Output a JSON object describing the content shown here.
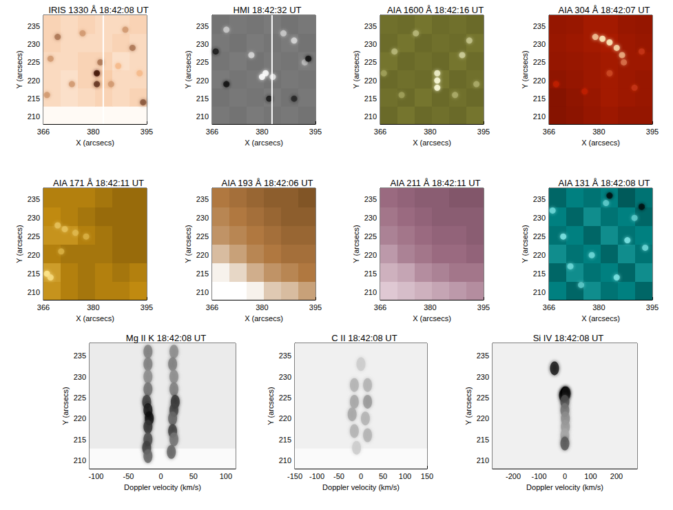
{
  "chart_data": [
    {
      "type": "heatmap",
      "title": "IRIS 1330 Å 18:42:08 UT",
      "x_label": "X (arcsecs)",
      "y_label": "Y (arcsecs)",
      "xlim": [
        366,
        395
      ],
      "xticks": [
        366,
        380,
        395
      ],
      "ylim": [
        208,
        238
      ],
      "yticks": [
        210,
        215,
        220,
        225,
        230,
        235
      ],
      "zlim": [
        0,
        1
      ],
      "colors": [
        "#fffaf5",
        "#f5b98a",
        "#3a0d00"
      ],
      "cells": [
        [
          0,
          0,
          0,
          0,
          0,
          0
        ],
        [
          0.25,
          0.2,
          0.25,
          0.3,
          0.25,
          0.3
        ],
        [
          0.25,
          0.2,
          0.3,
          0.35,
          0.25,
          0.25
        ],
        [
          0.25,
          0.25,
          0.3,
          0.3,
          0.2,
          0.25
        ],
        [
          0.3,
          0.25,
          0.25,
          0.25,
          0.3,
          0.25
        ],
        [
          0.3,
          0.25,
          0.3,
          0.25,
          0.25,
          0.3
        ]
      ],
      "spots": [
        [
          381,
          222,
          1
        ],
        [
          381,
          219,
          0.9
        ],
        [
          382,
          225,
          0.7
        ],
        [
          370,
          232,
          0.7
        ],
        [
          368,
          226,
          0.6
        ],
        [
          374,
          219,
          0.6
        ],
        [
          391,
          229,
          0.7
        ],
        [
          394,
          214,
          0.8
        ],
        [
          387,
          224,
          0.5
        ],
        [
          377,
          233,
          0.6
        ],
        [
          389,
          234,
          0.6
        ],
        [
          367,
          216,
          0.6
        ],
        [
          385,
          219,
          0.6
        ],
        [
          393,
          222,
          0.5
        ]
      ],
      "slit_x": 382.8
    },
    {
      "type": "heatmap",
      "title": "HMI 18:42:32 UT",
      "x_label": "X (arcsecs)",
      "y_label": "Y (arcsecs)",
      "xlim": [
        366,
        395
      ],
      "xticks": [
        366,
        380,
        395
      ],
      "ylim": [
        208,
        238
      ],
      "yticks": [
        210,
        215,
        220,
        225,
        230,
        235
      ],
      "zlim": [
        0,
        1
      ],
      "colors": [
        "#000000",
        "#ffffff"
      ],
      "cells": [
        [
          0.47,
          0.45,
          0.48,
          0.46,
          0.47,
          0.45
        ],
        [
          0.45,
          0.47,
          0.46,
          0.48,
          0.45,
          0.47
        ],
        [
          0.48,
          0.46,
          0.47,
          0.45,
          0.47,
          0.46
        ],
        [
          0.46,
          0.48,
          0.45,
          0.47,
          0.46,
          0.48
        ],
        [
          0.47,
          0.45,
          0.48,
          0.46,
          0.48,
          0.45
        ],
        [
          0.45,
          0.47,
          0.46,
          0.48,
          0.45,
          0.47
        ]
      ],
      "spots": [
        [
          381,
          222,
          1
        ],
        [
          380,
          221,
          1
        ],
        [
          383,
          221,
          0.9
        ],
        [
          377,
          227,
          0.85
        ],
        [
          389,
          231,
          0.85
        ],
        [
          392,
          225,
          0.75
        ],
        [
          386,
          233,
          0.8
        ],
        [
          370,
          234,
          0.8
        ],
        [
          370,
          219,
          0.05
        ],
        [
          367,
          228,
          0.1
        ],
        [
          382,
          215,
          0.1
        ],
        [
          393,
          226,
          0.05
        ],
        [
          389,
          215,
          0.15
        ]
      ],
      "slit_x": 382.8
    },
    {
      "type": "heatmap",
      "title": "AIA 1600 Å 18:42:16 UT",
      "x_label": "X (arcsecs)",
      "y_label": "Y (arcsecs)",
      "xlim": [
        366,
        395
      ],
      "xticks": [
        366,
        380,
        395
      ],
      "ylim": [
        208,
        238
      ],
      "yticks": [
        210,
        215,
        220,
        225,
        230,
        235
      ],
      "zlim": [
        0,
        1
      ],
      "colors": [
        "#1f1f00",
        "#8a8a3a",
        "#ffffe0"
      ],
      "cells": [
        [
          0.35,
          0.4,
          0.35,
          0.38,
          0.35,
          0.4
        ],
        [
          0.38,
          0.35,
          0.4,
          0.35,
          0.38,
          0.35
        ],
        [
          0.35,
          0.38,
          0.36,
          0.4,
          0.35,
          0.38
        ],
        [
          0.4,
          0.35,
          0.38,
          0.35,
          0.4,
          0.36
        ],
        [
          0.36,
          0.4,
          0.35,
          0.38,
          0.36,
          0.4
        ],
        [
          0.38,
          0.36,
          0.4,
          0.36,
          0.38,
          0.35
        ]
      ],
      "spots": [
        [
          382,
          220,
          1
        ],
        [
          382,
          218,
          1
        ],
        [
          382,
          222,
          0.95
        ],
        [
          389,
          227,
          0.8
        ],
        [
          391,
          231,
          0.75
        ],
        [
          370,
          228,
          0.7
        ],
        [
          376,
          233,
          0.7
        ],
        [
          387,
          216,
          0.65
        ],
        [
          372,
          216,
          0.6
        ],
        [
          393,
          219,
          0.65
        ],
        [
          367,
          222,
          0.6
        ]
      ]
    },
    {
      "type": "heatmap",
      "title": "AIA 304 Å 18:42:07 UT",
      "x_label": "X (arcsecs)",
      "y_label": "Y (arcsecs)",
      "xlim": [
        366,
        395
      ],
      "xticks": [
        366,
        380,
        395
      ],
      "ylim": [
        208,
        238
      ],
      "yticks": [
        210,
        215,
        220,
        225,
        230,
        235
      ],
      "zlim": [
        0,
        1
      ],
      "colors": [
        "#300000",
        "#c02000",
        "#fff0c0"
      ],
      "cells": [
        [
          0.3,
          0.32,
          0.35,
          0.38,
          0.35,
          0.35
        ],
        [
          0.3,
          0.33,
          0.36,
          0.4,
          0.38,
          0.36
        ],
        [
          0.33,
          0.35,
          0.38,
          0.4,
          0.38,
          0.36
        ],
        [
          0.35,
          0.36,
          0.38,
          0.4,
          0.38,
          0.38
        ],
        [
          0.36,
          0.38,
          0.4,
          0.42,
          0.38,
          0.36
        ],
        [
          0.35,
          0.36,
          0.4,
          0.4,
          0.36,
          0.35
        ]
      ],
      "spots": [
        [
          379,
          232,
          0.9
        ],
        [
          381,
          231.5,
          1
        ],
        [
          383,
          230.5,
          1
        ],
        [
          385,
          229,
          0.95
        ],
        [
          386.5,
          227,
          0.85
        ],
        [
          387,
          225,
          0.7
        ],
        [
          383,
          222,
          0.6
        ],
        [
          390,
          218,
          0.55
        ],
        [
          376,
          217,
          0.5
        ],
        [
          368,
          219,
          0.5
        ],
        [
          392,
          228,
          0.55
        ]
      ]
    },
    {
      "type": "heatmap",
      "title": "AIA 171 Å 18:42:11 UT",
      "x_label": "X (arcsecs)",
      "y_label": "Y (arcsecs)",
      "xlim": [
        366,
        395
      ],
      "xticks": [
        366,
        380,
        395
      ],
      "ylim": [
        208,
        238
      ],
      "yticks": [
        210,
        215,
        220,
        225,
        230,
        235
      ],
      "zlim": [
        0,
        1
      ],
      "colors": [
        "#3a2400",
        "#c08a10",
        "#ffe890"
      ],
      "cells": [
        [
          0.55,
          0.45,
          0.4,
          0.45,
          0.45,
          0.5
        ],
        [
          0.6,
          0.45,
          0.4,
          0.45,
          0.4,
          0.45
        ],
        [
          0.45,
          0.4,
          0.4,
          0.4,
          0.35,
          0.35
        ],
        [
          0.55,
          0.55,
          0.45,
          0.4,
          0.35,
          0.35
        ],
        [
          0.5,
          0.45,
          0.4,
          0.35,
          0.35,
          0.35
        ],
        [
          0.45,
          0.45,
          0.45,
          0.4,
          0.35,
          0.35
        ]
      ],
      "spots": [
        [
          367,
          215,
          1
        ],
        [
          368,
          214,
          0.95
        ],
        [
          370,
          228,
          0.8
        ],
        [
          372,
          227,
          0.8
        ],
        [
          375,
          226,
          0.75
        ],
        [
          378,
          225,
          0.7
        ],
        [
          371,
          221,
          0.7
        ]
      ]
    },
    {
      "type": "heatmap",
      "title": "AIA 193 Å 18:42:06 UT",
      "x_label": "X (arcsecs)",
      "y_label": "Y (arcsecs)",
      "xlim": [
        366,
        395
      ],
      "xticks": [
        366,
        380,
        395
      ],
      "ylim": [
        208,
        238
      ],
      "yticks": [
        210,
        215,
        220,
        225,
        230,
        235
      ],
      "zlim": [
        0,
        1
      ],
      "colors": [
        "#3a2000",
        "#b07840",
        "#ffffff"
      ],
      "cells": [
        [
          1,
          1,
          0.95,
          0.8,
          0.75,
          0.65
        ],
        [
          0.95,
          0.85,
          0.7,
          0.6,
          0.55,
          0.5
        ],
        [
          0.75,
          0.65,
          0.55,
          0.5,
          0.45,
          0.45
        ],
        [
          0.6,
          0.55,
          0.5,
          0.45,
          0.4,
          0.4
        ],
        [
          0.55,
          0.5,
          0.45,
          0.4,
          0.35,
          0.35
        ],
        [
          0.5,
          0.45,
          0.4,
          0.35,
          0.35,
          0.3
        ]
      ],
      "spots": []
    },
    {
      "type": "heatmap",
      "title": "AIA 211 Å 18:42:11 UT",
      "x_label": "X (arcsecs)",
      "y_label": "Y (arcsecs)",
      "xlim": [
        366,
        395
      ],
      "xticks": [
        366,
        380,
        395
      ],
      "ylim": [
        208,
        238
      ],
      "yticks": [
        210,
        215,
        220,
        225,
        230,
        235
      ],
      "zlim": [
        0,
        1
      ],
      "colors": [
        "#4a2838",
        "#9a6a80",
        "#f0e0e8"
      ],
      "cells": [
        [
          0.9,
          0.85,
          0.8,
          0.75,
          0.7,
          0.65
        ],
        [
          0.8,
          0.75,
          0.65,
          0.6,
          0.55,
          0.55
        ],
        [
          0.7,
          0.6,
          0.55,
          0.5,
          0.5,
          0.45
        ],
        [
          0.6,
          0.55,
          0.5,
          0.45,
          0.45,
          0.4
        ],
        [
          0.55,
          0.5,
          0.45,
          0.4,
          0.4,
          0.4
        ],
        [
          0.5,
          0.45,
          0.4,
          0.4,
          0.35,
          0.35
        ]
      ],
      "spots": []
    },
    {
      "type": "heatmap",
      "title": "AIA 131 Å 18:42:08 UT",
      "x_label": "X (arcsecs)",
      "y_label": "Y (arcsecs)",
      "xlim": [
        366,
        395
      ],
      "xticks": [
        366,
        380,
        395
      ],
      "ylim": [
        208,
        238
      ],
      "yticks": [
        210,
        215,
        220,
        225,
        230,
        235
      ],
      "zlim": [
        0,
        1
      ],
      "colors": [
        "#000000",
        "#008080",
        "#a0ffff"
      ],
      "cells": [
        [
          0.5,
          0.4,
          0.55,
          0.45,
          0.5,
          0.4
        ],
        [
          0.4,
          0.55,
          0.45,
          0.5,
          0.4,
          0.55
        ],
        [
          0.55,
          0.45,
          0.5,
          0.4,
          0.55,
          0.45
        ],
        [
          0.45,
          0.5,
          0.4,
          0.55,
          0.45,
          0.5
        ],
        [
          0.5,
          0.4,
          0.55,
          0.45,
          0.5,
          0.4
        ],
        [
          0.4,
          0.5,
          0.45,
          0.5,
          0.35,
          0.45
        ]
      ],
      "spots": [
        [
          370,
          225,
          0.9
        ],
        [
          378,
          220,
          0.85
        ],
        [
          385,
          214,
          0.9
        ],
        [
          390,
          230,
          0.8
        ],
        [
          367,
          232,
          0.85
        ],
        [
          382,
          234,
          0.8
        ],
        [
          393,
          222,
          0.85
        ],
        [
          375,
          212,
          0.8
        ],
        [
          388,
          224,
          0.9
        ],
        [
          372,
          217,
          0.85
        ],
        [
          383,
          236,
          0.05
        ],
        [
          392,
          233,
          0.05
        ]
      ]
    },
    {
      "type": "heatmap",
      "title": "Mg II K 18:42:08 UT",
      "x_label": "Doppler velocity (km/s)",
      "y_label": "Y (arcsecs)",
      "xlim": [
        -110,
        115
      ],
      "xticks": [
        -100,
        -50,
        0,
        50,
        100
      ],
      "ylim": [
        208,
        238
      ],
      "yticks": [
        210,
        215,
        220,
        225,
        230,
        235
      ],
      "zlim": [
        0,
        1
      ],
      "colors": [
        "#ffffff",
        "#000000"
      ],
      "cells": [
        [
          0.02
        ],
        [
          0.08
        ],
        [
          0.08
        ],
        [
          0.08
        ],
        [
          0.08
        ],
        [
          0.08
        ]
      ],
      "spots": [
        [
          -20,
          236,
          0.5
        ],
        [
          -20,
          233,
          0.5
        ],
        [
          -20,
          230,
          0.45
        ],
        [
          -20,
          227,
          0.55
        ],
        [
          -22,
          224,
          0.75
        ],
        [
          -20,
          222,
          0.9
        ],
        [
          -18,
          220,
          0.95
        ],
        [
          -20,
          218,
          0.8
        ],
        [
          -20,
          215,
          0.7
        ],
        [
          -22,
          213,
          0.75
        ],
        [
          -20,
          211,
          0.6
        ],
        [
          20,
          236,
          0.45
        ],
        [
          18,
          233,
          0.5
        ],
        [
          20,
          230,
          0.45
        ],
        [
          20,
          227,
          0.5
        ],
        [
          22,
          224,
          0.8
        ],
        [
          20,
          222,
          0.75
        ],
        [
          18,
          220,
          0.6
        ],
        [
          18,
          217,
          0.75
        ],
        [
          20,
          215,
          0.55
        ],
        [
          16,
          212,
          0.6
        ]
      ]
    },
    {
      "type": "heatmap",
      "title": "C II 18:42:08 UT",
      "x_label": "Doppler velocity (km/s)",
      "y_label": "Y (arcsecs)",
      "xlim": [
        -150,
        150
      ],
      "xticks": [
        -150,
        -100,
        -50,
        0,
        50,
        100,
        150
      ],
      "ylim": [
        208,
        238
      ],
      "yticks": [
        210,
        215,
        220,
        225,
        230,
        235
      ],
      "zlim": [
        0,
        1
      ],
      "colors": [
        "#ffffff",
        "#000000"
      ],
      "cells": [
        [
          0.02
        ],
        [
          0.06
        ],
        [
          0.06
        ],
        [
          0.06
        ],
        [
          0.06
        ],
        [
          0.06
        ]
      ],
      "spots": [
        [
          -15,
          228,
          0.3
        ],
        [
          15,
          228,
          0.3
        ],
        [
          -15,
          224,
          0.35
        ],
        [
          15,
          224,
          0.4
        ],
        [
          -20,
          221,
          0.35
        ],
        [
          10,
          220,
          0.3
        ],
        [
          -15,
          217,
          0.3
        ],
        [
          15,
          216,
          0.3
        ],
        [
          0,
          233,
          0.2
        ],
        [
          -10,
          213,
          0.2
        ]
      ]
    },
    {
      "type": "heatmap",
      "title": "Si IV 18:42:08 UT",
      "x_label": "Doppler velocity (km/s)",
      "y_label": "Y (arcsecs)",
      "xlim": [
        -280,
        280
      ],
      "xticks": [
        -200,
        -100,
        0,
        100,
        200
      ],
      "ylim": [
        208,
        238
      ],
      "yticks": [
        210,
        215,
        220,
        225,
        230,
        235
      ],
      "zlim": [
        0,
        1
      ],
      "colors": [
        "#ffffff",
        "#000000"
      ],
      "cells": [
        [
          0.06
        ]
      ],
      "spots": [
        [
          0,
          226,
          1
        ],
        [
          -5,
          225.5,
          1
        ],
        [
          5,
          226,
          0.95
        ],
        [
          0,
          224,
          0.7
        ],
        [
          0,
          222,
          0.55
        ],
        [
          2,
          220,
          0.45
        ],
        [
          2,
          218,
          0.4
        ],
        [
          0,
          216,
          0.35
        ],
        [
          0,
          214,
          0.65
        ],
        [
          -40,
          232,
          0.9
        ]
      ]
    }
  ]
}
